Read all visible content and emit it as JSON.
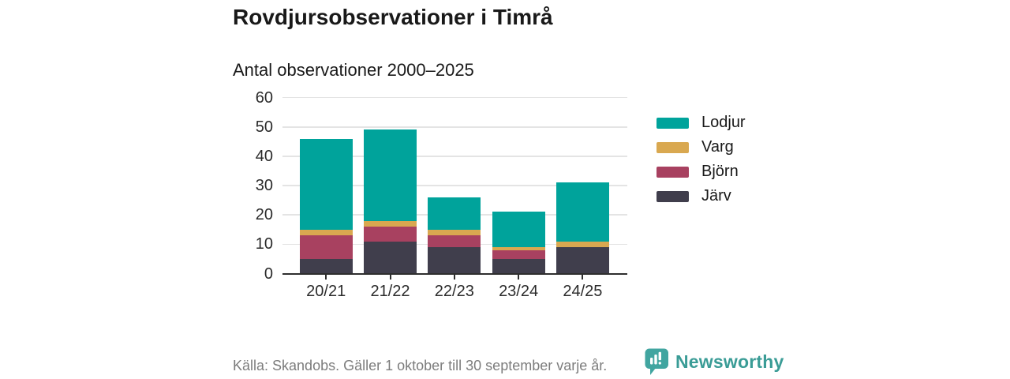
{
  "header": {
    "title": "Rovdjursobservationer i Timrå",
    "subtitle": "Antal observationer 2000–2025"
  },
  "chart_data": {
    "type": "bar",
    "stacked": true,
    "title": "Rovdjursobservationer i Timrå",
    "subtitle": "Antal observationer 2000–2025",
    "categories": [
      "20/21",
      "21/22",
      "22/23",
      "23/24",
      "24/25"
    ],
    "series": [
      {
        "name": "Järv",
        "color": "#403E4C",
        "values": [
          5,
          11,
          9,
          5,
          9
        ]
      },
      {
        "name": "Björn",
        "color": "#A84160",
        "values": [
          8,
          5,
          4,
          3,
          0
        ]
      },
      {
        "name": "Varg",
        "color": "#D9A850",
        "values": [
          2,
          2,
          2,
          1,
          2
        ]
      },
      {
        "name": "Lodjur",
        "color": "#00A39B",
        "values": [
          31,
          31,
          11,
          12,
          20
        ]
      }
    ],
    "totals": [
      46,
      49,
      26,
      21,
      31
    ],
    "ylim": [
      0,
      60
    ],
    "yticks": [
      0,
      10,
      20,
      30,
      40,
      50,
      60
    ],
    "grid": true,
    "legend_position": "right",
    "legend_order": [
      "Lodjur",
      "Varg",
      "Björn",
      "Järv"
    ]
  },
  "footer": {
    "source": "Källa: Skandobs. Gäller 1 oktober till 30 september varje år.",
    "brand": "Newsworthy"
  },
  "colors": {
    "accent_teal": "#00A39B",
    "gold": "#D9A850",
    "maroon": "#A84160",
    "dark": "#403E4C",
    "brand_teal": "#3A9C96",
    "logo_teal": "#41A5A0",
    "footer_gray": "#7C7C7C",
    "grid_gray": "#E4E4E4",
    "axis_dark": "#2E2E2E"
  }
}
